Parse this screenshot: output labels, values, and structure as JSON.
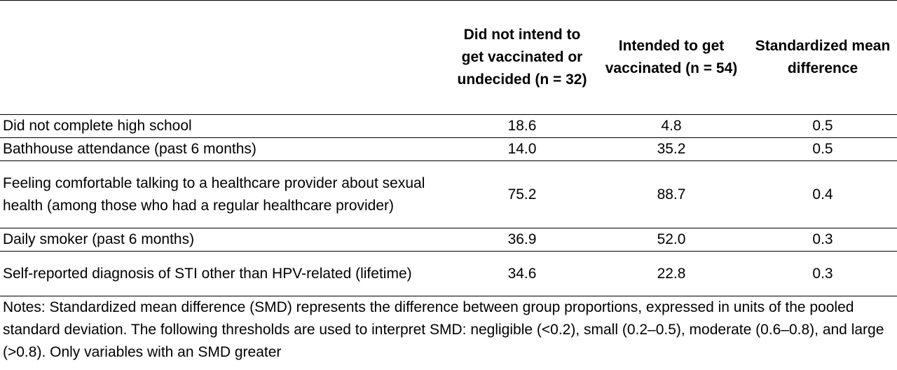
{
  "table": {
    "headers": [
      "",
      "Did not intend to get vaccinated or undecided (n = 32)",
      "Intended to get vaccinated (n = 54)",
      "Standardized mean difference"
    ],
    "rows": [
      {
        "label": "Did not complete high school",
        "col1": "18.6",
        "col2": "4.8",
        "col3": "0.5"
      },
      {
        "label": "Bathhouse attendance (past 6 months)",
        "col1": "14.0",
        "col2": "35.2",
        "col3": "0.5"
      },
      {
        "label": "Feeling comfortable talking to a healthcare provider about sexual health (among those who had a regular healthcare provider)",
        "col1": "75.2",
        "col2": "88.7",
        "col3": "0.4"
      },
      {
        "label": "Daily smoker (past 6 months)",
        "col1": "36.9",
        "col2": "52.0",
        "col3": "0.3"
      },
      {
        "label": "Self-reported diagnosis of STI other than HPV-related (lifetime)",
        "col1": "34.6",
        "col2": "22.8",
        "col3": "0.3"
      }
    ],
    "notes": "Notes: Standardized mean difference (SMD) represents the difference between group proportions, expressed in units of the pooled standard deviation. The following thresholds are used to interpret SMD: negligible (<0.2), small (0.2–0.5), moderate (0.6–0.8), and large (>0.8). Only variables with an SMD greater"
  }
}
